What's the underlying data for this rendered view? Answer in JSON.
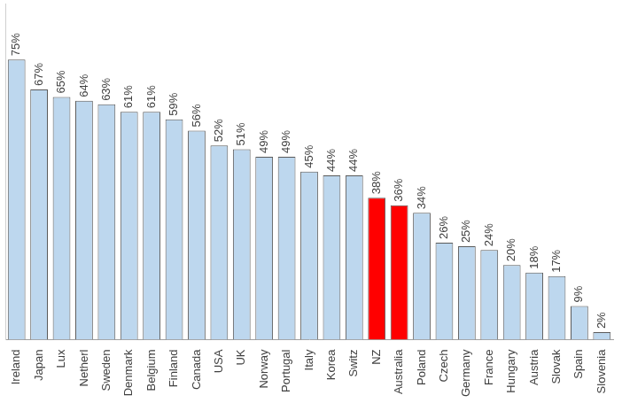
{
  "chart_data": {
    "type": "bar",
    "categories": [
      "Ireland",
      "Japan",
      "Lux",
      "Netherl",
      "Sweden",
      "Denmark",
      "Belgium",
      "Finland",
      "Canada",
      "USA",
      "UK",
      "Norway",
      "Portugal",
      "Italy",
      "Korea",
      "Switz",
      "NZ",
      "Australia",
      "Poland",
      "Czech",
      "Germany",
      "France",
      "Hungary",
      "Austria",
      "Slovak",
      "Spain",
      "Slovenia"
    ],
    "values": [
      75,
      67,
      65,
      64,
      63,
      61,
      61,
      59,
      56,
      52,
      51,
      49,
      49,
      45,
      44,
      44,
      38,
      36,
      34,
      26,
      25,
      24,
      20,
      18,
      17,
      9,
      2
    ],
    "value_labels": [
      "75%",
      "67%",
      "65%",
      "64%",
      "63%",
      "61%",
      "61%",
      "59%",
      "56%",
      "52%",
      "51%",
      "49%",
      "49%",
      "45%",
      "44%",
      "44%",
      "38%",
      "36%",
      "34%",
      "26%",
      "25%",
      "24%",
      "20%",
      "18%",
      "17%",
      "9%",
      "2%"
    ],
    "colors": [
      "#bdd7ee",
      "#bdd7ee",
      "#bdd7ee",
      "#bdd7ee",
      "#bdd7ee",
      "#bdd7ee",
      "#bdd7ee",
      "#bdd7ee",
      "#bdd7ee",
      "#bdd7ee",
      "#bdd7ee",
      "#bdd7ee",
      "#bdd7ee",
      "#bdd7ee",
      "#bdd7ee",
      "#bdd7ee",
      "#ff0000",
      "#ff0000",
      "#bdd7ee",
      "#bdd7ee",
      "#bdd7ee",
      "#bdd7ee",
      "#bdd7ee",
      "#bdd7ee",
      "#bdd7ee",
      "#bdd7ee",
      "#bdd7ee"
    ],
    "ylim": [
      0,
      90
    ],
    "grid": false,
    "data_labels": true,
    "tick_labels": "x"
  }
}
